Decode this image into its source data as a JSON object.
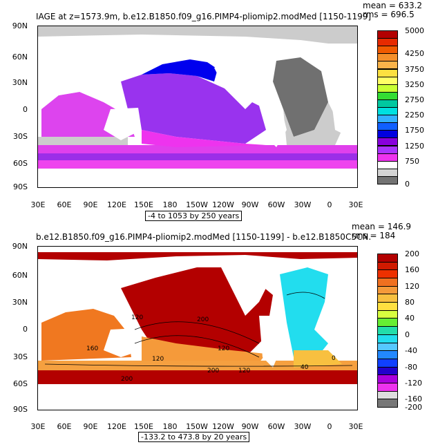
{
  "panel1": {
    "title": "IAGE at z=1573.9m, b.e12.B1850.f09_g16.PIMP4-pliomip2.modMed [1150-1199]",
    "mean_text": "mean = 633.2",
    "rms_text": "rms = 696.5",
    "range_text": "-4 to 1053 by 250 years",
    "lat_labels": [
      "90N",
      "60N",
      "30N",
      "0",
      "30S",
      "60S",
      "90S"
    ],
    "lon_labels": [
      "30E",
      "60E",
      "90E",
      "120E",
      "150E",
      "180",
      "150W",
      "120W",
      "90W",
      "60W",
      "30W",
      "0",
      "30E"
    ],
    "colorbar": {
      "labels": [
        "5000",
        "4250",
        "3750",
        "3250",
        "2750",
        "2250",
        "1750",
        "1250",
        "750",
        "0"
      ],
      "colors": [
        "#b30000",
        "#e62a00",
        "#f05a00",
        "#f58f2a",
        "#fab34a",
        "#fde040",
        "#ffff66",
        "#c8ff33",
        "#33dd33",
        "#00c8a0",
        "#00e0e0",
        "#33b0ff",
        "#1060ff",
        "#0000e0",
        "#8800dd",
        "#aa33ff",
        "#ee33ee",
        "#ffffff",
        "#d4d4d4",
        "#737373"
      ]
    }
  },
  "panel2": {
    "title": "b.e12.B1850.f09_g16.PIMP4-pliomip2.modMed [1150-1199] - b.e12.B1850C5CN.",
    "mean_text": "mean = 146.9",
    "rms_text": "rms = 184",
    "range_text": "-133.2 to 473.8 by 20 years",
    "lat_labels": [
      "90N",
      "60N",
      "30N",
      "0",
      "30S",
      "60S",
      "90S"
    ],
    "lon_labels": [
      "30E",
      "60E",
      "90E",
      "120E",
      "150E",
      "180",
      "150W",
      "120W",
      "90W",
      "60W",
      "30W",
      "0",
      "30E"
    ],
    "contour_labels": [
      "120",
      "200",
      "160",
      "120",
      "200",
      "200",
      "120",
      "120",
      "40",
      "0"
    ],
    "colorbar": {
      "labels": [
        "200",
        "160",
        "120",
        "80",
        "40",
        "0",
        "-40",
        "-80",
        "-120",
        "-160",
        "-200"
      ],
      "colors": [
        "#b30000",
        "#d01a00",
        "#ee3000",
        "#f07020",
        "#f59a3a",
        "#f8c040",
        "#ffe040",
        "#d8ff40",
        "#66ee33",
        "#22ddaa",
        "#22ddee",
        "#55c8ff",
        "#2288ff",
        "#1040ff",
        "#2200cc",
        "#aa00dd",
        "#ee33ee",
        "#dddddd",
        "#777777"
      ]
    }
  }
}
